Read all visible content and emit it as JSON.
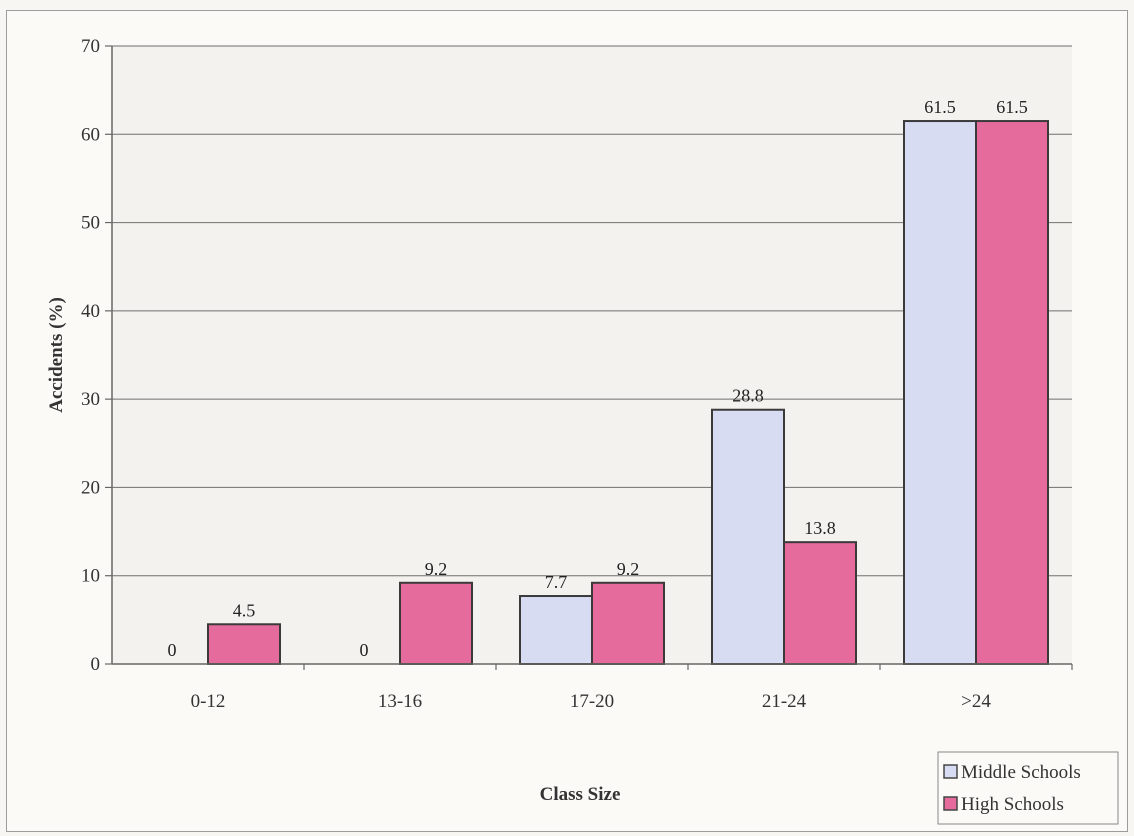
{
  "chart_data": {
    "type": "bar",
    "xlabel": "Class Size",
    "ylabel": "Accidents (%)",
    "categories": [
      "0-12",
      "13-16",
      "17-20",
      "21-24",
      ">24"
    ],
    "ylim": [
      0,
      70
    ],
    "yticks": [
      "0",
      "10",
      "20",
      "30",
      "40",
      "50",
      "60",
      "70"
    ],
    "grid": true,
    "legend_position": "bottom-right",
    "series": [
      {
        "name": "Middle Schools",
        "values": [
          0,
          0,
          7.7,
          28.8,
          61.5
        ],
        "labels": [
          "0",
          "0",
          "7.7",
          "28.8",
          "61.5"
        ],
        "color": "#d8dcf2"
      },
      {
        "name": "High Schools",
        "values": [
          4.5,
          9.2,
          9.2,
          13.8,
          61.5
        ],
        "labels": [
          "4.5",
          "9.2",
          "9.2",
          "13.8",
          "61.5"
        ],
        "color": "#e56b9c"
      }
    ]
  }
}
